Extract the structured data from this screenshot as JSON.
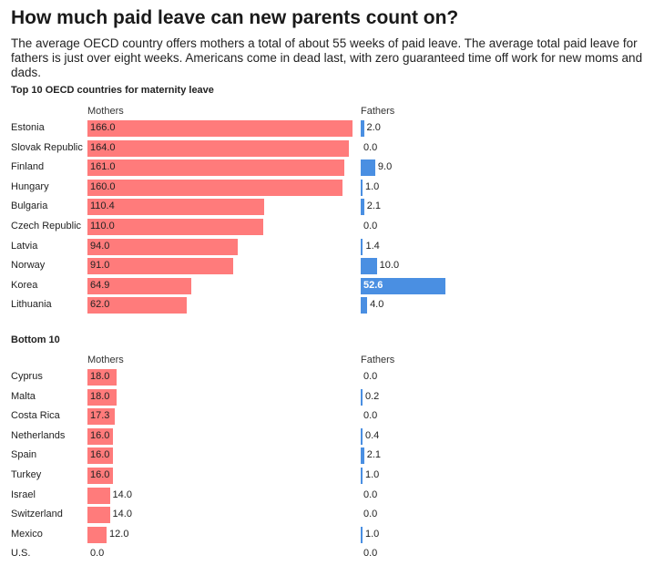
{
  "title": "How much paid leave can new parents count on?",
  "subtitle": "The average OECD country offers mothers a total of about 55 weeks of paid leave. The average total paid leave for fathers is just over eight weeks. Americans come in dead last, with zero guaranteed time off work for new moms and dads.",
  "chart_data": [
    {
      "type": "bar",
      "orientation": "horizontal",
      "title": "Top 10 OECD countries for maternity leave",
      "column_labels": {
        "mothers": "Mothers",
        "fathers": "Fathers"
      },
      "categories": [
        "Estonia",
        "Slovak Republic",
        "Finland",
        "Hungary",
        "Bulgaria",
        "Czech Republic",
        "Latvia",
        "Norway",
        "Korea",
        "Lithuania"
      ],
      "series": [
        {
          "name": "Mothers",
          "color": "#ff7b7b",
          "values": [
            166.0,
            164.0,
            161.0,
            160.0,
            110.4,
            110.0,
            94.0,
            91.0,
            64.9,
            62.0
          ]
        },
        {
          "name": "Fathers",
          "color": "#4a8fe2",
          "values": [
            2.0,
            0.0,
            9.0,
            1.0,
            2.1,
            0.0,
            1.4,
            10.0,
            52.6,
            4.0
          ]
        }
      ],
      "xlim": [
        0,
        166
      ]
    },
    {
      "type": "bar",
      "orientation": "horizontal",
      "title": "Bottom 10",
      "column_labels": {
        "mothers": "Mothers",
        "fathers": "Fathers"
      },
      "categories": [
        "Cyprus",
        "Malta",
        "Costa Rica",
        "Netherlands",
        "Spain",
        "Turkey",
        "Israel",
        "Switzerland",
        "Mexico",
        "U.S."
      ],
      "series": [
        {
          "name": "Mothers",
          "color": "#ff7b7b",
          "values": [
            18.0,
            18.0,
            17.3,
            16.0,
            16.0,
            16.0,
            14.0,
            14.0,
            12.0,
            0.0
          ]
        },
        {
          "name": "Fathers",
          "color": "#4a8fe2",
          "values": [
            0.0,
            0.2,
            0.0,
            0.4,
            2.1,
            1.0,
            0.0,
            0.0,
            1.0,
            0.0
          ]
        }
      ],
      "xlim": [
        0,
        166
      ]
    }
  ]
}
